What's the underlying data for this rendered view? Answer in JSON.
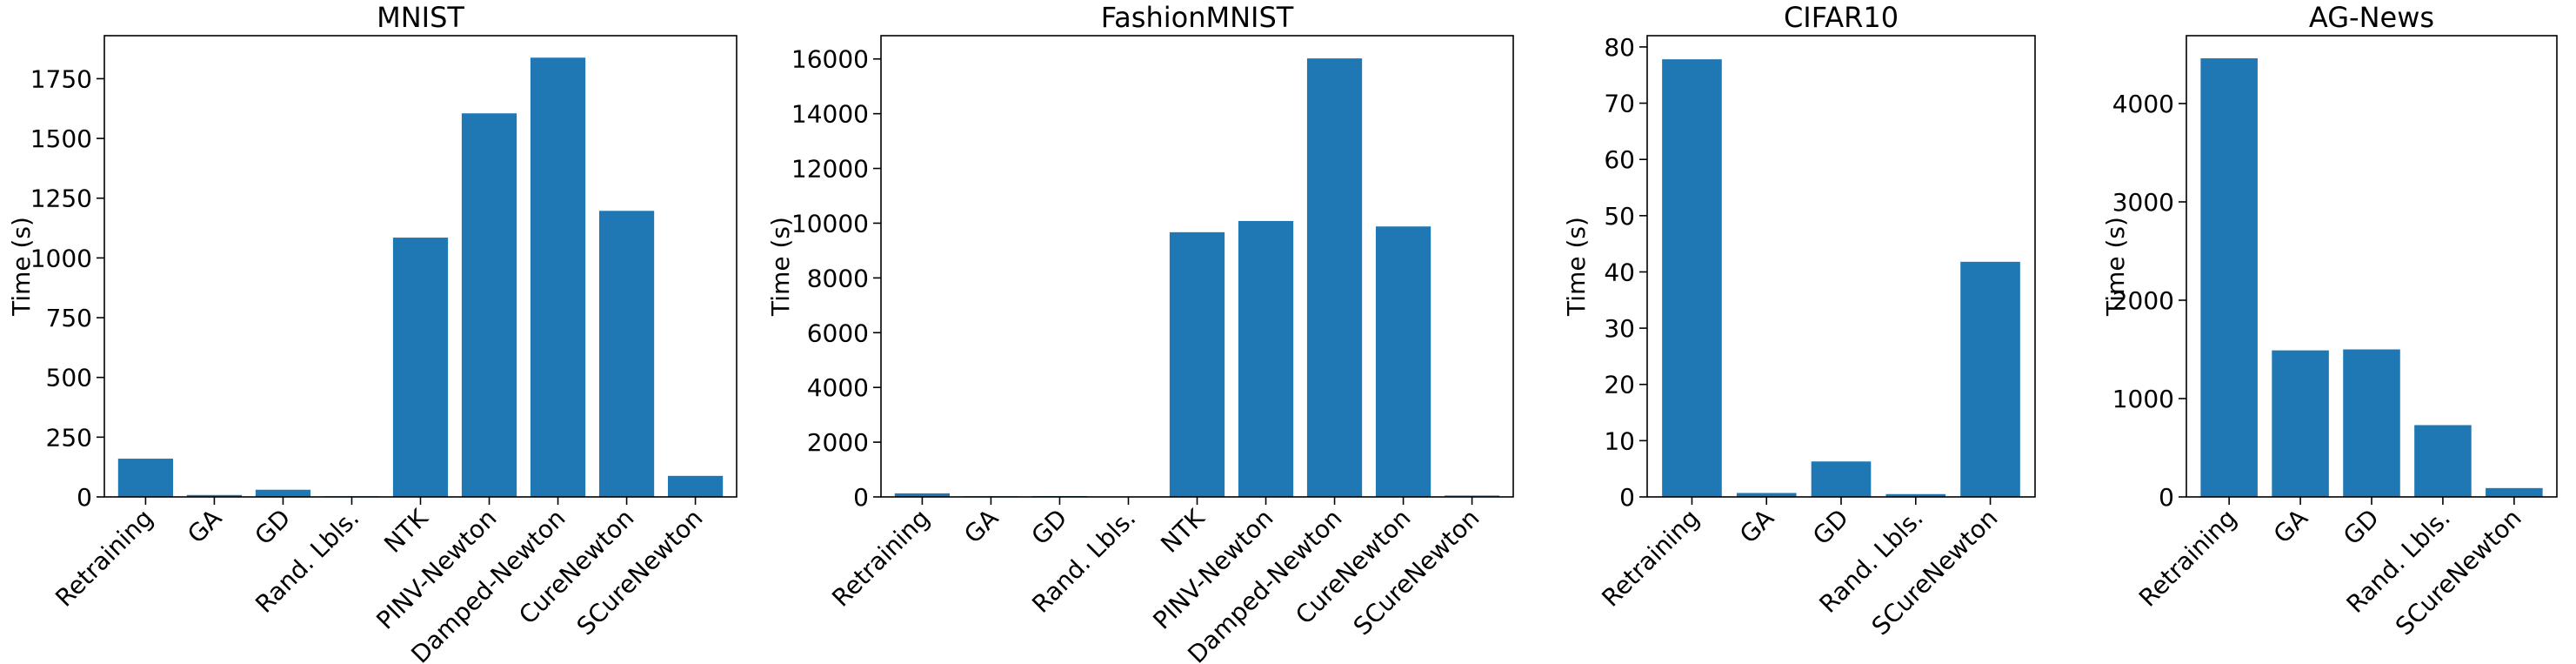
{
  "figure": {
    "bar_color": "#1f77b4"
  },
  "chart_data": [
    {
      "type": "bar",
      "title": "MNIST",
      "ylabel": "Time (s)",
      "categories": [
        "Retraining",
        "GA",
        "GD",
        "Rand. Lbls.",
        "NTK",
        "PINV-Newton",
        "Damped-Newton",
        "CureNewton",
        "SCureNewton"
      ],
      "values": [
        160,
        8,
        30,
        3,
        1085,
        1605,
        1838,
        1197,
        88
      ],
      "ylim": [
        0,
        1930
      ],
      "yticks": [
        0,
        250,
        500,
        750,
        1000,
        1250,
        1500,
        1750
      ],
      "ytick_labels": [
        "0",
        "250",
        "500",
        "750",
        "1000",
        "1250",
        "1500",
        "1750"
      ],
      "grid": false
    },
    {
      "type": "bar",
      "title": "FashionMNIST",
      "ylabel": "Time (s)",
      "categories": [
        "Retraining",
        "GA",
        "GD",
        "Rand. Lbls.",
        "NTK",
        "PINV-Newton",
        "Damped-Newton",
        "CureNewton",
        "SCureNewton"
      ],
      "values": [
        130,
        25,
        30,
        15,
        9670,
        10080,
        16020,
        9880,
        50
      ],
      "ylim": [
        0,
        16850
      ],
      "yticks": [
        0,
        2000,
        4000,
        6000,
        8000,
        10000,
        12000,
        14000,
        16000
      ],
      "ytick_labels": [
        "0",
        "2000",
        "4000",
        "6000",
        "8000",
        "10000",
        "12000",
        "14000",
        "16000"
      ],
      "grid": false
    },
    {
      "type": "bar",
      "title": "CIFAR10",
      "ylabel": "Time (s)",
      "categories": [
        "Retraining",
        "GA",
        "GD",
        "Rand. Lbls.",
        "SCureNewton"
      ],
      "values": [
        77.8,
        0.7,
        6.3,
        0.5,
        41.8
      ],
      "ylim": [
        0,
        82
      ],
      "yticks": [
        0,
        10,
        20,
        30,
        40,
        50,
        60,
        70,
        80
      ],
      "ytick_labels": [
        "0",
        "10",
        "20",
        "30",
        "40",
        "50",
        "60",
        "70",
        "80"
      ],
      "grid": false
    },
    {
      "type": "bar",
      "title": "AG-News",
      "ylabel": "Time (s)",
      "categories": [
        "Retraining",
        "GA",
        "GD",
        "Rand. Lbls.",
        "SCureNewton"
      ],
      "values": [
        4460,
        1490,
        1500,
        730,
        90
      ],
      "ylim": [
        0,
        4690
      ],
      "yticks": [
        0,
        1000,
        2000,
        3000,
        4000
      ],
      "ytick_labels": [
        "0",
        "1000",
        "2000",
        "3000",
        "4000"
      ],
      "grid": false
    }
  ]
}
